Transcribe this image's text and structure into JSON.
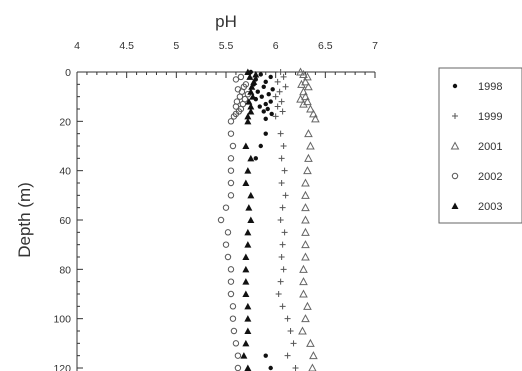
{
  "chart_data": {
    "type": "scatter",
    "title": "",
    "xlabel": "pH",
    "ylabel": "Depth (m)",
    "xlim": [
      4,
      7
    ],
    "ylim": [
      0,
      120
    ],
    "y_inverted": true,
    "x_axis_position": "top",
    "grid": false,
    "legend_position": "right",
    "x_ticks": [
      4,
      4.5,
      5,
      5.5,
      6,
      6.5,
      7
    ],
    "x_tick_labels": [
      "4",
      "4.5",
      "5",
      "5.5",
      "6",
      "6.5",
      "7"
    ],
    "y_ticks": [
      0,
      20,
      40,
      60,
      80,
      100,
      120
    ],
    "y_tick_labels": [
      "0",
      "20",
      "40",
      "60",
      "80",
      "100",
      "120"
    ],
    "series": [
      {
        "name": "1998",
        "marker": "dot",
        "points": [
          [
            5.75,
            0
          ],
          [
            5.85,
            1
          ],
          [
            5.95,
            2
          ],
          [
            5.8,
            3
          ],
          [
            5.9,
            4
          ],
          [
            5.78,
            5
          ],
          [
            5.88,
            6
          ],
          [
            5.97,
            7
          ],
          [
            5.82,
            8
          ],
          [
            5.93,
            9
          ],
          [
            5.86,
            10
          ],
          [
            5.8,
            11
          ],
          [
            5.95,
            12
          ],
          [
            5.9,
            13
          ],
          [
            5.84,
            14
          ],
          [
            5.92,
            15
          ],
          [
            5.88,
            16
          ],
          [
            5.96,
            17
          ],
          [
            5.9,
            19
          ],
          [
            5.9,
            25
          ],
          [
            5.85,
            30
          ],
          [
            5.8,
            35
          ],
          [
            5.9,
            115
          ],
          [
            5.95,
            120
          ]
        ]
      },
      {
        "name": "1999",
        "marker": "plus",
        "points": [
          [
            6.05,
            0
          ],
          [
            6.08,
            2
          ],
          [
            6.02,
            4
          ],
          [
            6.1,
            6
          ],
          [
            6.04,
            8
          ],
          [
            6.0,
            10
          ],
          [
            6.06,
            12
          ],
          [
            6.02,
            14
          ],
          [
            6.07,
            16
          ],
          [
            6.0,
            18
          ],
          [
            6.05,
            25
          ],
          [
            6.08,
            30
          ],
          [
            6.06,
            35
          ],
          [
            6.09,
            40
          ],
          [
            6.06,
            45
          ],
          [
            6.1,
            50
          ],
          [
            6.07,
            55
          ],
          [
            6.05,
            60
          ],
          [
            6.09,
            65
          ],
          [
            6.07,
            70
          ],
          [
            6.06,
            75
          ],
          [
            6.08,
            80
          ],
          [
            6.05,
            85
          ],
          [
            6.03,
            90
          ],
          [
            6.07,
            95
          ],
          [
            6.12,
            100
          ],
          [
            6.15,
            105
          ],
          [
            6.18,
            110
          ],
          [
            6.12,
            115
          ],
          [
            6.2,
            120
          ]
        ]
      },
      {
        "name": "2001",
        "marker": "triangle-open",
        "points": [
          [
            6.25,
            0
          ],
          [
            6.28,
            1
          ],
          [
            6.32,
            2
          ],
          [
            6.3,
            4
          ],
          [
            6.26,
            5
          ],
          [
            6.33,
            6
          ],
          [
            6.28,
            8
          ],
          [
            6.3,
            10
          ],
          [
            6.25,
            11
          ],
          [
            6.32,
            12
          ],
          [
            6.28,
            13
          ],
          [
            6.35,
            15
          ],
          [
            6.38,
            17
          ],
          [
            6.4,
            19
          ],
          [
            6.33,
            25
          ],
          [
            6.35,
            30
          ],
          [
            6.33,
            35
          ],
          [
            6.32,
            40
          ],
          [
            6.3,
            45
          ],
          [
            6.3,
            50
          ],
          [
            6.3,
            55
          ],
          [
            6.3,
            60
          ],
          [
            6.3,
            65
          ],
          [
            6.3,
            70
          ],
          [
            6.3,
            75
          ],
          [
            6.28,
            80
          ],
          [
            6.28,
            85
          ],
          [
            6.28,
            90
          ],
          [
            6.32,
            95
          ],
          [
            6.3,
            100
          ],
          [
            6.27,
            105
          ],
          [
            6.35,
            110
          ],
          [
            6.38,
            115
          ],
          [
            6.37,
            120
          ]
        ]
      },
      {
        "name": "2002",
        "marker": "circle-open",
        "points": [
          [
            5.65,
            2
          ],
          [
            5.6,
            3
          ],
          [
            5.7,
            5
          ],
          [
            5.68,
            6
          ],
          [
            5.62,
            7
          ],
          [
            5.66,
            8
          ],
          [
            5.72,
            9
          ],
          [
            5.64,
            10
          ],
          [
            5.69,
            11
          ],
          [
            5.61,
            12
          ],
          [
            5.67,
            13
          ],
          [
            5.6,
            14
          ],
          [
            5.65,
            15
          ],
          [
            5.63,
            16
          ],
          [
            5.6,
            17
          ],
          [
            5.58,
            18
          ],
          [
            5.55,
            20
          ],
          [
            5.55,
            25
          ],
          [
            5.57,
            30
          ],
          [
            5.55,
            35
          ],
          [
            5.55,
            40
          ],
          [
            5.55,
            45
          ],
          [
            5.55,
            50
          ],
          [
            5.5,
            55
          ],
          [
            5.45,
            60
          ],
          [
            5.52,
            65
          ],
          [
            5.5,
            70
          ],
          [
            5.52,
            75
          ],
          [
            5.55,
            80
          ],
          [
            5.55,
            85
          ],
          [
            5.55,
            90
          ],
          [
            5.57,
            95
          ],
          [
            5.57,
            100
          ],
          [
            5.58,
            105
          ],
          [
            5.6,
            110
          ],
          [
            5.62,
            115
          ],
          [
            5.62,
            120
          ]
        ]
      },
      {
        "name": "2003",
        "marker": "triangle-filled",
        "points": [
          [
            5.72,
            0
          ],
          [
            5.8,
            1
          ],
          [
            5.74,
            2
          ],
          [
            5.78,
            4
          ],
          [
            5.76,
            6
          ],
          [
            5.75,
            8
          ],
          [
            5.77,
            10
          ],
          [
            5.73,
            12
          ],
          [
            5.75,
            14
          ],
          [
            5.75,
            16
          ],
          [
            5.72,
            18
          ],
          [
            5.72,
            20
          ],
          [
            5.7,
            30
          ],
          [
            5.75,
            35
          ],
          [
            5.72,
            40
          ],
          [
            5.7,
            45
          ],
          [
            5.75,
            50
          ],
          [
            5.73,
            55
          ],
          [
            5.75,
            60
          ],
          [
            5.72,
            65
          ],
          [
            5.72,
            70
          ],
          [
            5.7,
            75
          ],
          [
            5.7,
            80
          ],
          [
            5.7,
            85
          ],
          [
            5.7,
            90
          ],
          [
            5.72,
            95
          ],
          [
            5.72,
            100
          ],
          [
            5.72,
            105
          ],
          [
            5.7,
            110
          ],
          [
            5.68,
            115
          ],
          [
            5.72,
            120
          ]
        ]
      }
    ]
  }
}
